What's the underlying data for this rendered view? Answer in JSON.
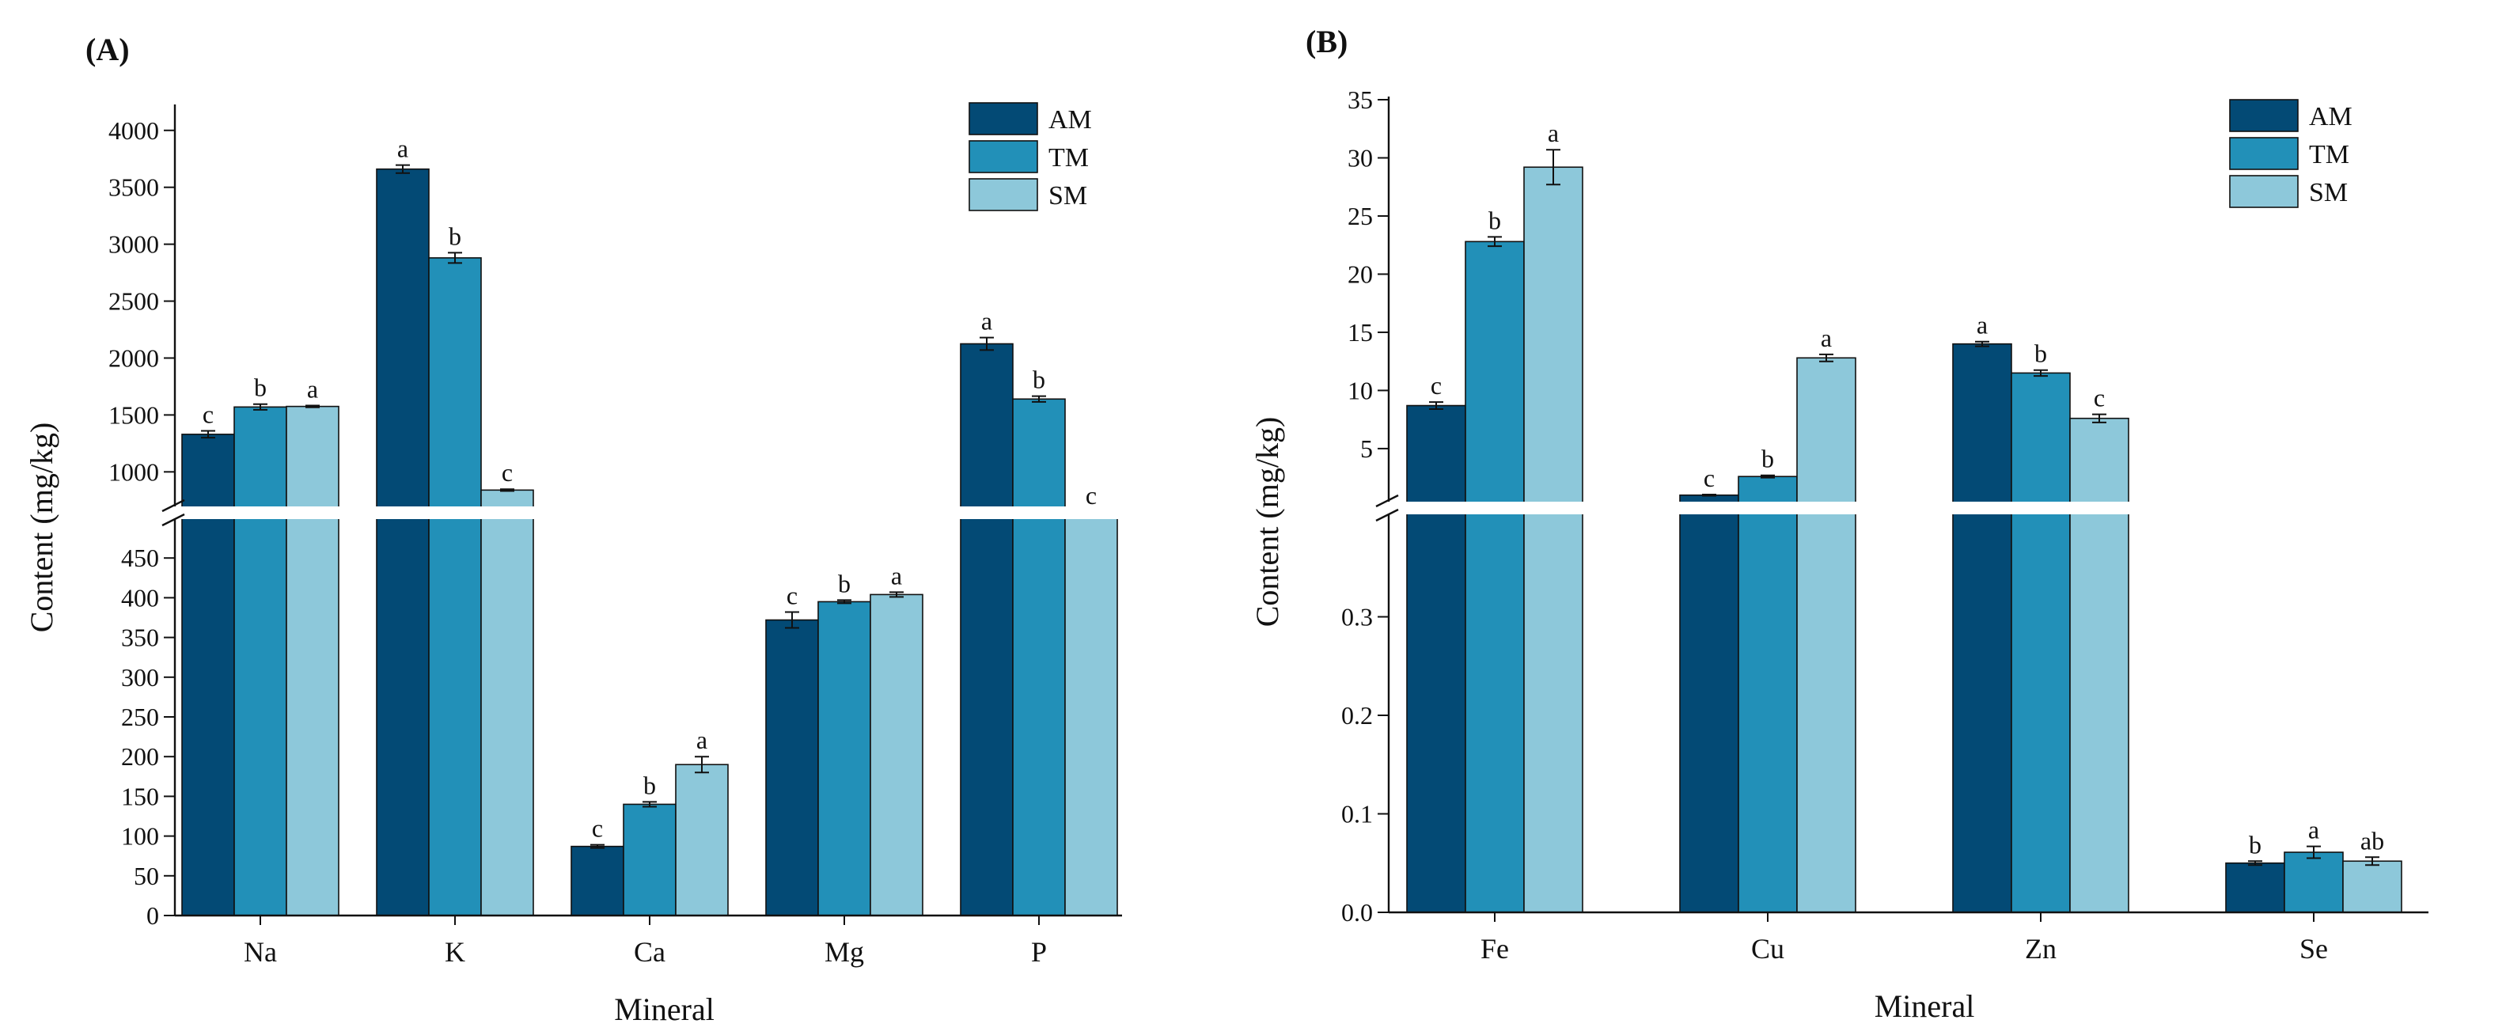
{
  "colors": {
    "AM": "#034a75",
    "TM": "#2290b8",
    "SM": "#8dc8da",
    "break_gap": "#ffffff",
    "axis": "#111111"
  },
  "legend": [
    "AM",
    "TM",
    "SM"
  ],
  "chart_data": [
    {
      "panel": "(A)",
      "type": "bar",
      "xlabel": "Mineral",
      "ylabel": "Content (mg/kg)",
      "categories": [
        "Na",
        "K",
        "Ca",
        "Mg",
        "P"
      ],
      "series": [
        {
          "name": "AM",
          "values": [
            1330,
            3660,
            87,
            372,
            2125
          ],
          "errors": [
            30,
            35,
            2,
            10,
            55
          ],
          "letters": [
            "c",
            "a",
            "c",
            "c",
            "a"
          ]
        },
        {
          "name": "TM",
          "values": [
            1570,
            2880,
            140,
            395,
            1640
          ],
          "errors": [
            25,
            45,
            3,
            2,
            25
          ],
          "letters": [
            "b",
            "b",
            "b",
            "b",
            "b"
          ]
        },
        {
          "name": "SM",
          "values": [
            1575,
            840,
            190,
            404,
            640
          ],
          "errors": [
            8,
            8,
            10,
            3,
            8
          ],
          "letters": [
            "a",
            "c",
            "a",
            "a",
            "c"
          ]
        }
      ],
      "y_axis_broken": true,
      "y_lower_range": [
        0,
        500
      ],
      "y_lower_ticks": [
        "0",
        "50",
        "100",
        "150",
        "200",
        "250",
        "300",
        "350",
        "400",
        "450"
      ],
      "y_upper_range": [
        620,
        4200
      ],
      "y_upper_ticks": [
        "1000",
        "1500",
        "2000",
        "2500",
        "3000",
        "3500",
        "4000"
      ],
      "legend_position": "top-right"
    },
    {
      "panel": "(B)",
      "type": "bar",
      "xlabel": "Mineral",
      "ylabel": "Content (mg/kg)",
      "categories": [
        "Fe",
        "Cu",
        "Zn",
        "Se"
      ],
      "series": [
        {
          "name": "AM",
          "values": [
            8.7,
            1.0,
            14.0,
            0.05
          ],
          "errors": [
            0.3,
            0.05,
            0.2,
            0.002
          ],
          "letters": [
            "c",
            "c",
            "a",
            "b"
          ]
        },
        {
          "name": "TM",
          "values": [
            22.8,
            2.6,
            11.5,
            0.061
          ],
          "errors": [
            0.4,
            0.1,
            0.25,
            0.006
          ],
          "letters": [
            "b",
            "b",
            "b",
            "a"
          ]
        },
        {
          "name": "SM",
          "values": [
            29.2,
            12.8,
            7.6,
            0.052
          ],
          "errors": [
            1.5,
            0.3,
            0.35,
            0.004
          ],
          "letters": [
            "a",
            "a",
            "c",
            "ab"
          ]
        }
      ],
      "y_axis_broken": true,
      "y_lower_range": [
        0,
        0.4
      ],
      "y_lower_ticks": [
        "0.0",
        "0.1",
        "0.2",
        "0.3"
      ],
      "y_upper_range": [
        0.3,
        35
      ],
      "y_upper_ticks": [
        "5",
        "10",
        "15",
        "20",
        "25",
        "30",
        "35"
      ],
      "legend_position": "top-right"
    }
  ]
}
